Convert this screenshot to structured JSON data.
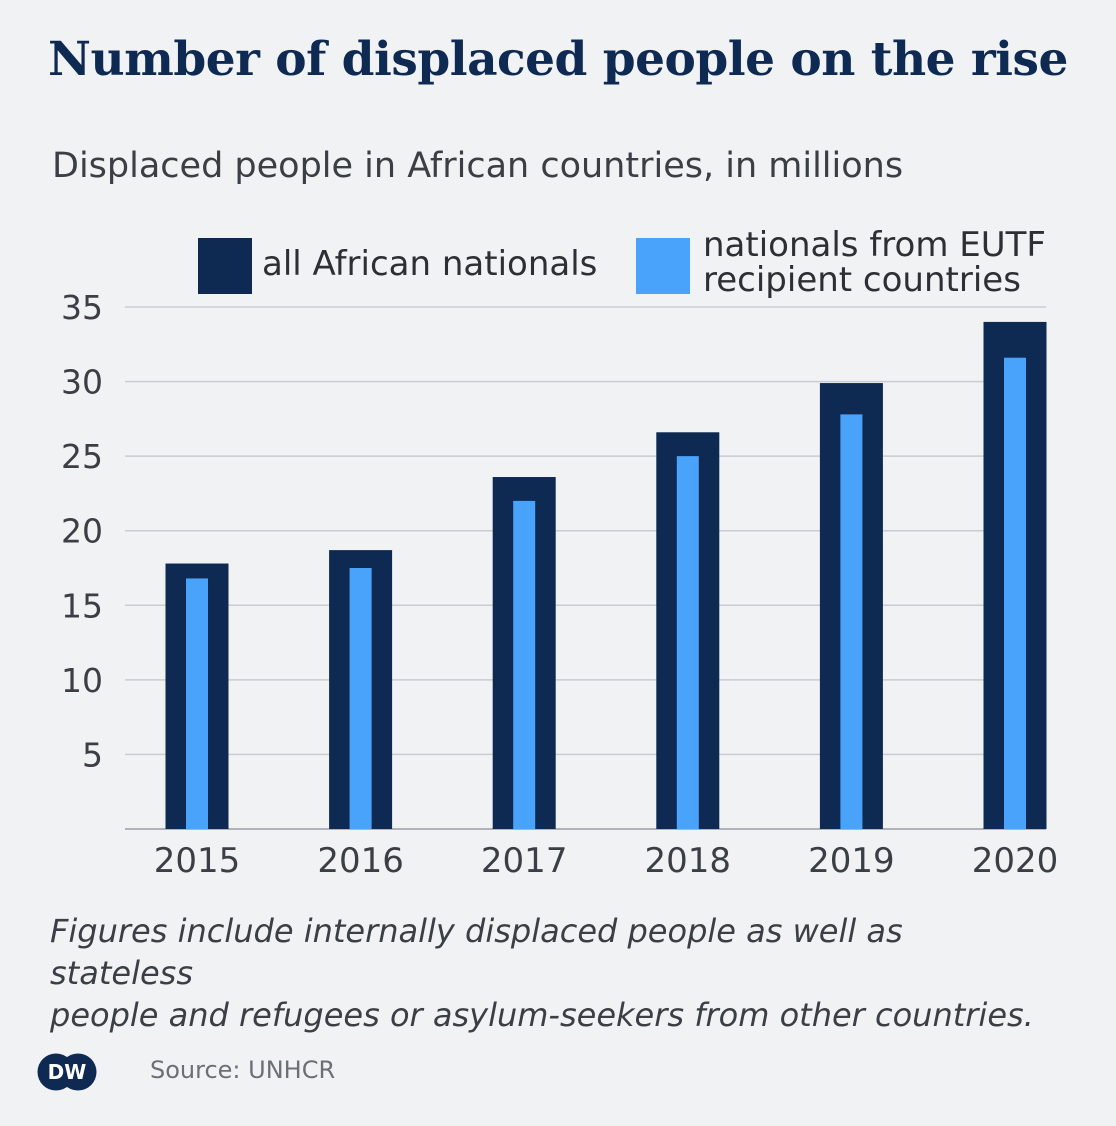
{
  "title": "Number of displaced people on the rise",
  "subtitle": "Displaced people in African countries, in millions",
  "legend": {
    "series1": "all African nationals",
    "series2_line1": "nationals from EUTF",
    "series2_line2": "recipient countries"
  },
  "note_line1": "Figures include internally displaced people as well as stateless",
  "note_line2": "people and refugees or asylum-seekers from other countries.",
  "source": "Source: UNHCR",
  "logo_text": "DW",
  "colors": {
    "series1": "#0e2a52",
    "series2": "#4aa3fb",
    "grid": "#c9ccd1"
  },
  "chart_data": {
    "type": "bar",
    "categories": [
      "2015",
      "2016",
      "2017",
      "2018",
      "2019",
      "2020"
    ],
    "series": [
      {
        "name": "all African nationals",
        "values": [
          17.8,
          18.7,
          23.6,
          26.6,
          29.9,
          34.0
        ]
      },
      {
        "name": "nationals from EUTF recipient countries",
        "values": [
          16.8,
          17.5,
          22.0,
          25.0,
          27.8,
          31.6
        ]
      }
    ],
    "ylim": [
      0,
      35
    ],
    "yticks": [
      5,
      10,
      15,
      20,
      25,
      30,
      35
    ],
    "grid": true,
    "legend_position": "top"
  }
}
